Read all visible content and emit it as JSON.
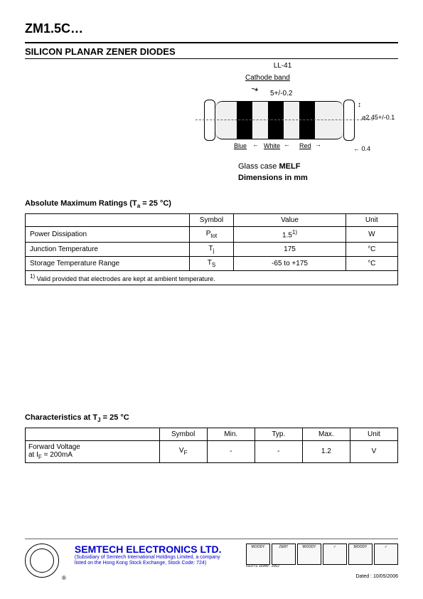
{
  "header": {
    "part_number": "ZM1.5C…",
    "subtitle": "SILICON PLANAR ZENER DIODES",
    "package": "LL-41"
  },
  "diagram": {
    "cathode_label": "Cathode band",
    "body_dim": "5+/-0.2",
    "colors": [
      "Blue",
      "White",
      "Red"
    ],
    "diameter": "2.45+/-0.1",
    "lead_dim": "0.4",
    "case_text_prefix": "Glass case ",
    "case_text_bold": "MELF",
    "dim_label": "Dimensions in mm"
  },
  "abs_max": {
    "title_prefix": "Absolute Maximum Ratings (T",
    "title_sub": "a",
    "title_suffix": " = 25 °C)",
    "headers": {
      "symbol": "Symbol",
      "value": "Value",
      "unit": "Unit"
    },
    "rows": [
      {
        "param": "Power Dissipation",
        "symbol": "P",
        "symbol_sub": "tot",
        "value": "1.5",
        "value_sup": "1)",
        "unit": "W"
      },
      {
        "param": "Junction Temperature",
        "symbol": "T",
        "symbol_sub": "j",
        "value": "175",
        "value_sup": "",
        "unit": "°C"
      },
      {
        "param": "Storage Temperature Range",
        "symbol": "T",
        "symbol_sub": "S",
        "value": "-65 to +175",
        "value_sup": "",
        "unit": "°C"
      }
    ],
    "footnote_sup": "1)",
    "footnote": " Valid provided that electrodes are kept at ambient temperature."
  },
  "characteristics": {
    "title_prefix": "Characteristics at T",
    "title_sub": "J",
    "title_suffix": " = 25 °C",
    "headers": {
      "symbol": "Symbol",
      "min": "Min.",
      "typ": "Typ.",
      "max": "Max.",
      "unit": "Unit"
    },
    "row": {
      "param_line1": "Forward Voltage",
      "param_line2_prefix": "at I",
      "param_line2_sub": "F",
      "param_line2_suffix": " = 200mA",
      "symbol": "V",
      "symbol_sub": "F",
      "min": "-",
      "typ": "-",
      "max": "1.2",
      "unit": "V"
    }
  },
  "footer": {
    "company": "SEMTECH ELECTRONICS LTD.",
    "sub1": "(Subsidiary of Semtech International Holdings Limited, a company",
    "sub2": "listed on the Hong Kong Stock Exchange, Stock Code: 724)",
    "certs": [
      "MOODY",
      "ZERT",
      "MOODY",
      "✓",
      "MOODY",
      "✓"
    ],
    "cert_lines": [
      "ISO/TS 16949 : 2002",
      "ISO 14001:2004",
      "ISO 9001:2000"
    ],
    "dated": "Dated : 10/05/2006"
  }
}
